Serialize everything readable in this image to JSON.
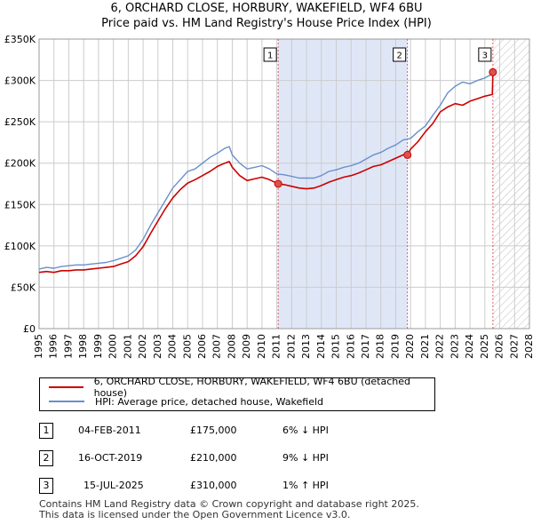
{
  "title_line1": "6, ORCHARD CLOSE, HORBURY, WAKEFIELD, WF4 6BU",
  "title_line2": "Price paid vs. HM Land Registry's House Price Index (HPI)",
  "colors": {
    "property": "#cc0000",
    "hpi": "#6a8fcc",
    "shade": "#dfe7f7",
    "grid": "#cccccc",
    "marker": "#d9534f"
  },
  "legend": {
    "property": "6, ORCHARD CLOSE, HORBURY, WAKEFIELD, WF4 6BU (detached house)",
    "hpi": "HPI: Average price, detached house, Wakefield"
  },
  "transactions": [
    {
      "n": "1",
      "date": "04-FEB-2011",
      "price": "£175,000",
      "hpi_rel": "6% ↓ HPI"
    },
    {
      "n": "2",
      "date": "16-OCT-2019",
      "price": "£210,000",
      "hpi_rel": "9% ↓ HPI"
    },
    {
      "n": "3",
      "date": "15-JUL-2025",
      "price": "£310,000",
      "hpi_rel": "1% ↑ HPI"
    }
  ],
  "footer": {
    "line1": "Contains HM Land Registry data © Crown copyright and database right 2025.",
    "line2": "This data is licensed under the Open Government Licence v3.0."
  },
  "chart_data": {
    "type": "line",
    "xlim": [
      1995,
      2028
    ],
    "ylim": [
      0,
      350000
    ],
    "ytick_values": [
      0,
      50000,
      100000,
      150000,
      200000,
      250000,
      300000,
      350000
    ],
    "ytick_labels": [
      "£0",
      "£50K",
      "£100K",
      "£150K",
      "£200K",
      "£250K",
      "£300K",
      "£350K"
    ],
    "xtick_values": [
      1995,
      1996,
      1997,
      1998,
      1999,
      2000,
      2001,
      2002,
      2003,
      2004,
      2005,
      2006,
      2007,
      2008,
      2009,
      2010,
      2011,
      2012,
      2013,
      2014,
      2015,
      2016,
      2017,
      2018,
      2019,
      2020,
      2021,
      2022,
      2023,
      2024,
      2025,
      2026,
      2027,
      2028
    ],
    "xtick_labels": [
      "1995",
      "1996",
      "1997",
      "1998",
      "1999",
      "2000",
      "2001",
      "2002",
      "2003",
      "2004",
      "2005",
      "2006",
      "2007",
      "2008",
      "2009",
      "2010",
      "2011",
      "2012",
      "2013",
      "2014",
      "2015",
      "2016",
      "2017",
      "2018",
      "2019",
      "2020",
      "2021",
      "2022",
      "2023",
      "2024",
      "2025",
      "2026",
      "2027",
      "2028"
    ],
    "shaded_period": [
      2011.09,
      2019.79
    ],
    "hatched_from": 2025.54,
    "series": [
      {
        "name": "HPI: Average price, detached house, Wakefield",
        "x": [
          1995,
          1995.5,
          1996,
          1996.5,
          1997,
          1997.5,
          1998,
          1998.5,
          1999,
          1999.5,
          2000,
          2000.5,
          2001,
          2001.5,
          2002,
          2002.5,
          2003,
          2003.5,
          2004,
          2004.5,
          2005,
          2005.5,
          2006,
          2006.5,
          2007,
          2007.5,
          2007.8,
          2008,
          2008.5,
          2009,
          2009.5,
          2010,
          2010.5,
          2011,
          2011.5,
          2012,
          2012.5,
          2013,
          2013.5,
          2014,
          2014.5,
          2015,
          2015.5,
          2016,
          2016.5,
          2017,
          2017.5,
          2018,
          2018.5,
          2019,
          2019.5,
          2020,
          2020.5,
          2021,
          2021.5,
          2022,
          2022.5,
          2023,
          2023.5,
          2024,
          2024.5,
          2025,
          2025.4
        ],
        "values": [
          72000,
          74000,
          73000,
          75000,
          76000,
          77000,
          77000,
          78000,
          79000,
          80000,
          82000,
          85000,
          88000,
          95000,
          108000,
          125000,
          140000,
          155000,
          170000,
          180000,
          190000,
          193000,
          200000,
          207000,
          212000,
          218000,
          220000,
          210000,
          200000,
          193000,
          195000,
          197000,
          193000,
          187000,
          186000,
          184000,
          182000,
          182000,
          182000,
          185000,
          190000,
          192000,
          195000,
          197000,
          200000,
          205000,
          210000,
          213000,
          218000,
          222000,
          228000,
          230000,
          238000,
          245000,
          258000,
          270000,
          285000,
          293000,
          298000,
          296000,
          300000,
          303000,
          307000
        ]
      },
      {
        "name": "6, ORCHARD CLOSE, HORBURY, WAKEFIELD, WF4 6BU (detached house)",
        "x": [
          1995,
          1995.5,
          1996,
          1996.5,
          1997,
          1997.5,
          1998,
          1998.5,
          1999,
          1999.5,
          2000,
          2000.5,
          2001,
          2001.5,
          2002,
          2002.5,
          2003,
          2003.5,
          2004,
          2004.5,
          2005,
          2005.5,
          2006,
          2006.5,
          2007,
          2007.5,
          2007.8,
          2008,
          2008.5,
          2009,
          2009.5,
          2010,
          2010.5,
          2011.09,
          2011.5,
          2012,
          2012.5,
          2013,
          2013.5,
          2014,
          2014.5,
          2015,
          2015.5,
          2016,
          2016.5,
          2017,
          2017.5,
          2018,
          2018.5,
          2019,
          2019.5,
          2019.79,
          2020,
          2020.5,
          2021,
          2021.5,
          2022,
          2022.5,
          2023,
          2023.5,
          2024,
          2024.5,
          2025,
          2025.5,
          2025.54
        ],
        "values": [
          68000,
          69000,
          68000,
          70000,
          70000,
          71000,
          71000,
          72000,
          73000,
          74000,
          75000,
          78000,
          81000,
          88000,
          99000,
          115000,
          130000,
          145000,
          158000,
          168000,
          176000,
          180000,
          185000,
          190000,
          196000,
          200000,
          202000,
          195000,
          185000,
          179000,
          181000,
          183000,
          180000,
          175000,
          174000,
          172000,
          170000,
          169000,
          170000,
          173000,
          177000,
          180000,
          183000,
          185000,
          188000,
          192000,
          196000,
          198000,
          202000,
          206000,
          210000,
          210000,
          217000,
          226000,
          238000,
          248000,
          262000,
          268000,
          272000,
          270000,
          275000,
          278000,
          281000,
          283000,
          310000
        ]
      }
    ],
    "markers": [
      {
        "label": "1",
        "x": 2011.09,
        "y": 175000
      },
      {
        "label": "2",
        "x": 2019.79,
        "y": 210000
      },
      {
        "label": "3",
        "x": 2025.54,
        "y": 310000
      }
    ]
  }
}
